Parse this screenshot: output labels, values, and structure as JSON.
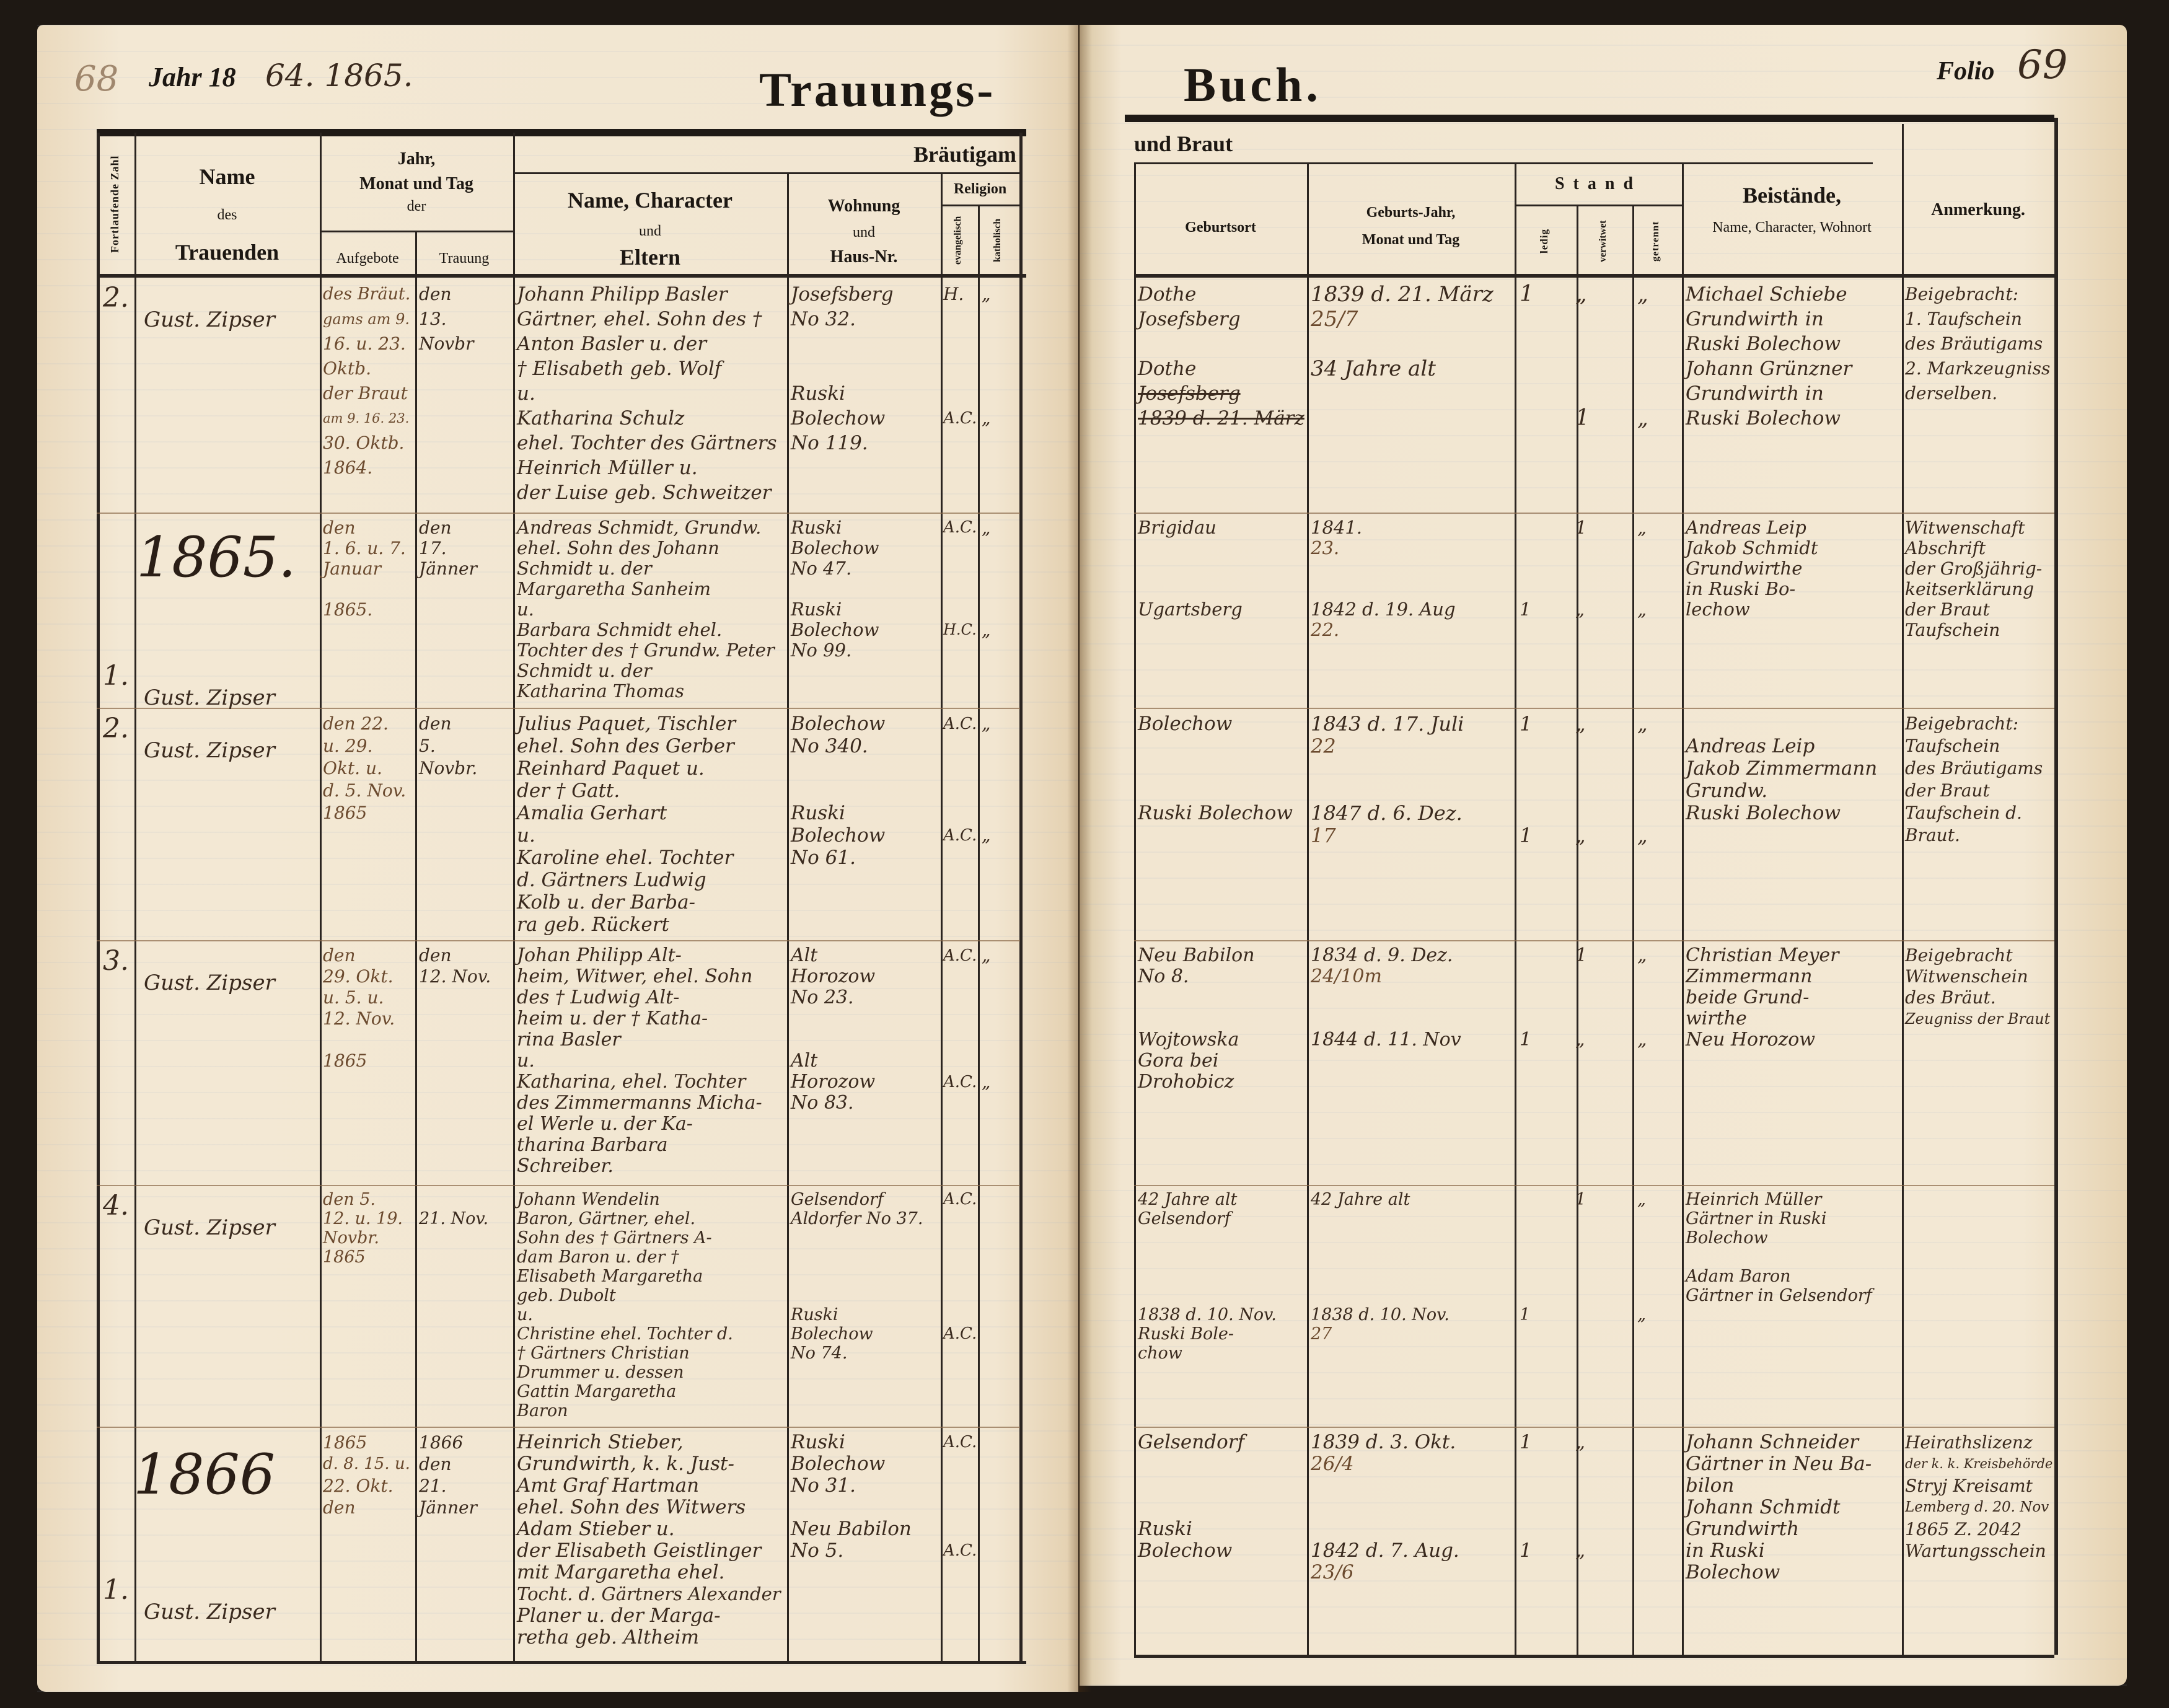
{
  "header": {
    "year_label": "Jahr 18",
    "year_handwritten": "64. 1865.",
    "page_mark_left": "68",
    "title_left": "Trauungs-",
    "title_right": "Buch.",
    "folio_label": "Folio",
    "folio_number": "69"
  },
  "columns": {
    "fortlaufende_zahl": "Fortlaufende Zahl",
    "name_line1": "Name",
    "name_line2": "des",
    "name_line3": "Trauenden",
    "datum_line1": "Jahr,",
    "datum_line2": "Monat und Tag",
    "datum_line3": "der",
    "aufgebote": "Aufgebote",
    "trauung": "Trauung",
    "braeutigam": "Bräutigam",
    "und_braut": "und Braut",
    "eltern_line1": "Name, Character",
    "eltern_line2": "und",
    "eltern_line3": "Eltern",
    "wohnung_line1": "Wohnung",
    "wohnung_line2": "und",
    "wohnung_line3": "Haus-Nr.",
    "religion": "Religion",
    "evangelisch": "evangelisch",
    "katholisch": "katholisch",
    "geburtsort": "Geburtsort",
    "geburtsjahr_line1": "Geburts-Jahr,",
    "geburtsjahr_line2": "Monat und Tag",
    "stand": "Stand",
    "ledig": "ledig",
    "verwitwet": "verwitwet",
    "getrennt": "getrennt",
    "beistaende_line1": "Beistände,",
    "beistaende_line2": "Name, Character, Wohnort",
    "anmerkung": "Anmerkung."
  },
  "year_headings": [
    "1865.",
    "1866"
  ],
  "rows": [
    {
      "number": "2.",
      "officiant": "Gust. Zipser",
      "aufgebote": [
        "des Bräut.",
        "gams am 9.",
        "16. u. 23.",
        "Oktb.",
        "der Braut",
        "am 9. 16. 23.",
        "30. Oktb.",
        "1864."
      ],
      "trauung": [
        "den",
        "13.",
        "Novbr"
      ],
      "eltern": [
        "Johann Philipp Basler",
        "Gärtner, ehel. Sohn des †",
        "Anton Basler u. der",
        "† Elisabeth geb. Wolf",
        "u.",
        "Katharina Schulz",
        "ehel. Tochter des Gärtners",
        "Heinrich Müller u.",
        "der Luise geb. Schweitzer"
      ],
      "wohnung": [
        "Josefsberg",
        "No 32.",
        "",
        "",
        "Ruski",
        "Bolechow",
        "No 119."
      ],
      "evangelisch": [
        "H.",
        "",
        "",
        "",
        "",
        "A.C."
      ],
      "katholisch": [
        "„",
        "",
        "",
        "",
        "",
        "„"
      ],
      "geburtsort": [
        "Dothe",
        "Josefsberg",
        "",
        "Dothe",
        "Josefsberg",
        "1839 d. 21. März"
      ],
      "geburtsjahr": [
        "1839 d. 21. März",
        "25/7",
        "",
        "34 Jahre alt"
      ],
      "ledig": [
        "1"
      ],
      "verwitwet": [
        "„",
        "",
        "",
        "",
        "",
        "1"
      ],
      "getrennt": [
        "„",
        "",
        "",
        "",
        "",
        "„"
      ],
      "beistaende": [
        "Michael Schiebe",
        "Grundwirth in",
        "Ruski Bolechow",
        "Johann Grünzner",
        "Grundwirth in",
        "Ruski Bolechow"
      ],
      "anmerkung": [
        "Beigebracht:",
        "1. Taufschein",
        "des Bräutigams",
        "2. Markzeugniss",
        "derselben."
      ]
    },
    {
      "number": "1.",
      "officiant": "Gust. Zipser",
      "aufgebote": [
        "den",
        "1. 6. u. 7.",
        "Januar",
        "",
        "1865."
      ],
      "trauung": [
        "den",
        "17.",
        "Jänner"
      ],
      "eltern": [
        "Andreas Schmidt, Grundw.",
        "ehel. Sohn des Johann",
        "Schmidt u. der",
        "Margaretha Sanheim",
        "u.",
        "Barbara Schmidt ehel.",
        "Tochter des † Grundw. Peter",
        "Schmidt u. der",
        "Katharina Thomas"
      ],
      "wohnung": [
        "Ruski",
        "Bolechow",
        "No 47.",
        "",
        "Ruski",
        "Bolechow",
        "No 99."
      ],
      "evangelisch": [
        "A.C.",
        "",
        "",
        "",
        "",
        "H.C."
      ],
      "katholisch": [
        "„",
        "",
        "",
        "",
        "",
        "„"
      ],
      "geburtsort": [
        "Brigidau",
        "",
        "",
        "",
        "Ugartsberg"
      ],
      "geburtsjahr": [
        "1841.",
        "23.",
        "",
        "",
        "1842 d. 19. Aug",
        "22."
      ],
      "ledig": [
        "",
        "",
        "",
        "",
        "1"
      ],
      "verwitwet": [
        "1",
        "",
        "",
        "",
        "„"
      ],
      "getrennt": [
        "„",
        "",
        "",
        "",
        "„"
      ],
      "beistaende": [
        "Andreas Leip",
        "Jakob Schmidt",
        "Grundwirthe",
        "in Ruski Bo-",
        "lechow"
      ],
      "anmerkung": [
        "Witwenschaft",
        "Abschrift",
        "der Großjährig-",
        "keitserklärung",
        "der Braut",
        "Taufschein"
      ]
    },
    {
      "number": "2.",
      "officiant": "Gust. Zipser",
      "aufgebote": [
        "den 22.",
        "u. 29.",
        "Okt. u.",
        "d. 5. Nov.",
        "1865"
      ],
      "trauung": [
        "den",
        "5.",
        "Novbr."
      ],
      "eltern": [
        "Julius Paquet, Tischler",
        "ehel. Sohn des Gerber",
        "Reinhard Paquet u.",
        "der † Gatt.",
        "Amalia Gerhart",
        "u.",
        "Karoline ehel. Tochter",
        "d. Gärtners Ludwig",
        "Kolb u. der Barba-",
        "ra geb. Rückert"
      ],
      "wohnung": [
        "Bolechow",
        "No 340.",
        "",
        "",
        "Ruski",
        "Bolechow",
        "No 61."
      ],
      "evangelisch": [
        "A.C.",
        "",
        "",
        "",
        "",
        "A.C."
      ],
      "katholisch": [
        "„",
        "",
        "",
        "",
        "",
        "„"
      ],
      "geburtsort": [
        "Bolechow",
        "",
        "",
        "",
        "Ruski Bolechow"
      ],
      "geburtsjahr": [
        "1843 d. 17. Juli",
        "22",
        "",
        "",
        "1847 d. 6. Dez.",
        "17"
      ],
      "ledig": [
        "1",
        "",
        "",
        "",
        "",
        "1"
      ],
      "verwitwet": [
        "„",
        "",
        "",
        "",
        "",
        "„"
      ],
      "getrennt": [
        "„",
        "",
        "",
        "",
        "",
        "„"
      ],
      "beistaende": [
        "",
        "Andreas Leip",
        "Jakob Zimmermann",
        "Grundw.",
        "Ruski Bolechow"
      ],
      "anmerkung": [
        "Beigebracht:",
        "Taufschein",
        "des Bräutigams",
        "der Braut",
        "Taufschein d.",
        "Braut."
      ]
    },
    {
      "number": "3.",
      "officiant": "Gust. Zipser",
      "aufgebote": [
        "den",
        "29. Okt.",
        "u. 5. u.",
        "12. Nov.",
        "",
        "1865"
      ],
      "trauung": [
        "den",
        "12. Nov."
      ],
      "eltern": [
        "Johan Philipp Alt-",
        "heim, Witwer, ehel. Sohn",
        "des † Ludwig Alt-",
        "heim u. der † Katha-",
        "rina Basler",
        "u.",
        "Katharina, ehel. Tochter",
        "des Zimmermanns Micha-",
        "el Werle u. der Ka-",
        "tharina Barbara",
        "Schreiber."
      ],
      "wohnung": [
        "Alt",
        "Horozow",
        "No 23.",
        "",
        "",
        "Alt",
        "Horozow",
        "No 83."
      ],
      "evangelisch": [
        "A.C.",
        "",
        "",
        "",
        "",
        "",
        "A.C."
      ],
      "katholisch": [
        "„",
        "",
        "",
        "",
        "",
        "",
        "„"
      ],
      "geburtsort": [
        "Neu Babilon",
        "No 8.",
        "",
        "",
        "Wojtowska",
        "Gora bei",
        "Drohobicz"
      ],
      "geburtsjahr": [
        "1834 d. 9. Dez.",
        "24/10m",
        "",
        "",
        "1844 d. 11. Nov"
      ],
      "ledig": [
        "",
        "",
        "",
        "",
        "1"
      ],
      "verwitwet": [
        "1",
        "",
        "",
        "",
        "„"
      ],
      "getrennt": [
        "„",
        "",
        "",
        "",
        "„"
      ],
      "beistaende": [
        "Christian Meyer",
        "Zimmermann",
        "beide Grund-",
        "wirthe",
        "Neu Horozow"
      ],
      "anmerkung": [
        "Beigebracht",
        "Witwenschein",
        "des Bräut.",
        "Zeugniss der Braut"
      ]
    },
    {
      "number": "4.",
      "officiant": "Gust. Zipser",
      "aufgebote": [
        "den 5.",
        "12. u. 19.",
        "Novbr.",
        "1865"
      ],
      "trauung": [
        "",
        "21. Nov."
      ],
      "eltern": [
        "Johann Wendelin",
        "Baron, Gärtner, ehel.",
        "Sohn des † Gärtners A-",
        "dam Baron u. der †",
        "Elisabeth Margaretha",
        "geb. Dubolt",
        "u.",
        "Christine ehel. Tochter d.",
        "† Gärtners Christian",
        "Drummer u. dessen",
        "Gattin Margaretha",
        "Baron"
      ],
      "wohnung": [
        "Gelsendorf",
        "Aldorfer No 37.",
        "",
        "",
        "",
        "",
        "Ruski",
        "Bolechow",
        "No 74."
      ],
      "evangelisch": [
        "A.C.",
        "",
        "",
        "",
        "",
        "",
        "",
        "A.C."
      ],
      "katholisch": [],
      "geburtsort": [
        "42 Jahre alt",
        "Gelsendorf",
        "",
        "",
        "",
        "",
        "1838 d. 10. Nov.",
        "Ruski Bole-",
        "chow"
      ],
      "geburtsjahr": [
        "42 Jahre alt",
        "",
        "",
        "",
        "",
        "",
        "1838 d. 10. Nov.",
        "27"
      ],
      "ledig": [
        "",
        "",
        "",
        "",
        "",
        "",
        "1"
      ],
      "verwitwet": [
        "1"
      ],
      "getrennt": [
        "„",
        "",
        "",
        "",
        "",
        "",
        "„"
      ],
      "beistaende": [
        "Heinrich Müller",
        "Gärtner in Ruski",
        "Bolechow",
        "",
        "Adam Baron",
        "Gärtner in Gelsendorf"
      ],
      "anmerkung": []
    },
    {
      "number": "1.",
      "officiant": "Gust. Zipser",
      "aufgebote": [
        "1865",
        "d. 8. 15. u.",
        "22. Okt.",
        "den"
      ],
      "trauung": [
        "1866",
        "den",
        "21.",
        "Jänner"
      ],
      "eltern": [
        "Heinrich Stieber,",
        "Grundwirth, k. k. Just-",
        "Amt Graf Hartman",
        "ehel. Sohn des Witwers",
        "Adam Stieber u.",
        "der Elisabeth Geistlinger",
        "mit Margaretha ehel.",
        "Tocht. d. Gärtners Alexander",
        "Planer u. der Marga-",
        "retha geb. Altheim"
      ],
      "wohnung": [
        "Ruski",
        "Bolechow",
        "No 31.",
        "",
        "Neu Babilon",
        "No 5."
      ],
      "evangelisch": [
        "A.C.",
        "",
        "",
        "",
        "",
        "A.C."
      ],
      "katholisch": [],
      "geburtsort": [
        "Gelsendorf",
        "",
        "",
        "",
        "Ruski",
        "Bolechow"
      ],
      "geburtsjahr": [
        "1839 d. 3. Okt.",
        "26/4",
        "",
        "",
        "",
        "1842 d. 7. Aug.",
        "23/6"
      ],
      "ledig": [
        "1",
        "",
        "",
        "",
        "",
        "1"
      ],
      "verwitwet": [
        "„",
        "",
        "",
        "",
        "",
        "„"
      ],
      "getrennt": [],
      "beistaende": [
        "Johann Schneider",
        "Gärtner in Neu Ba-",
        "bilon",
        "Johann Schmidt",
        "Grundwirth",
        "in Ruski",
        "Bolechow"
      ],
      "anmerkung": [
        "Heirathslizenz",
        "der k. k. Kreisbehörde",
        "Stryj Kreisamt",
        "Lemberg d. 20. Nov",
        "1865 Z. 2042",
        "Wartungsschein"
      ]
    }
  ]
}
